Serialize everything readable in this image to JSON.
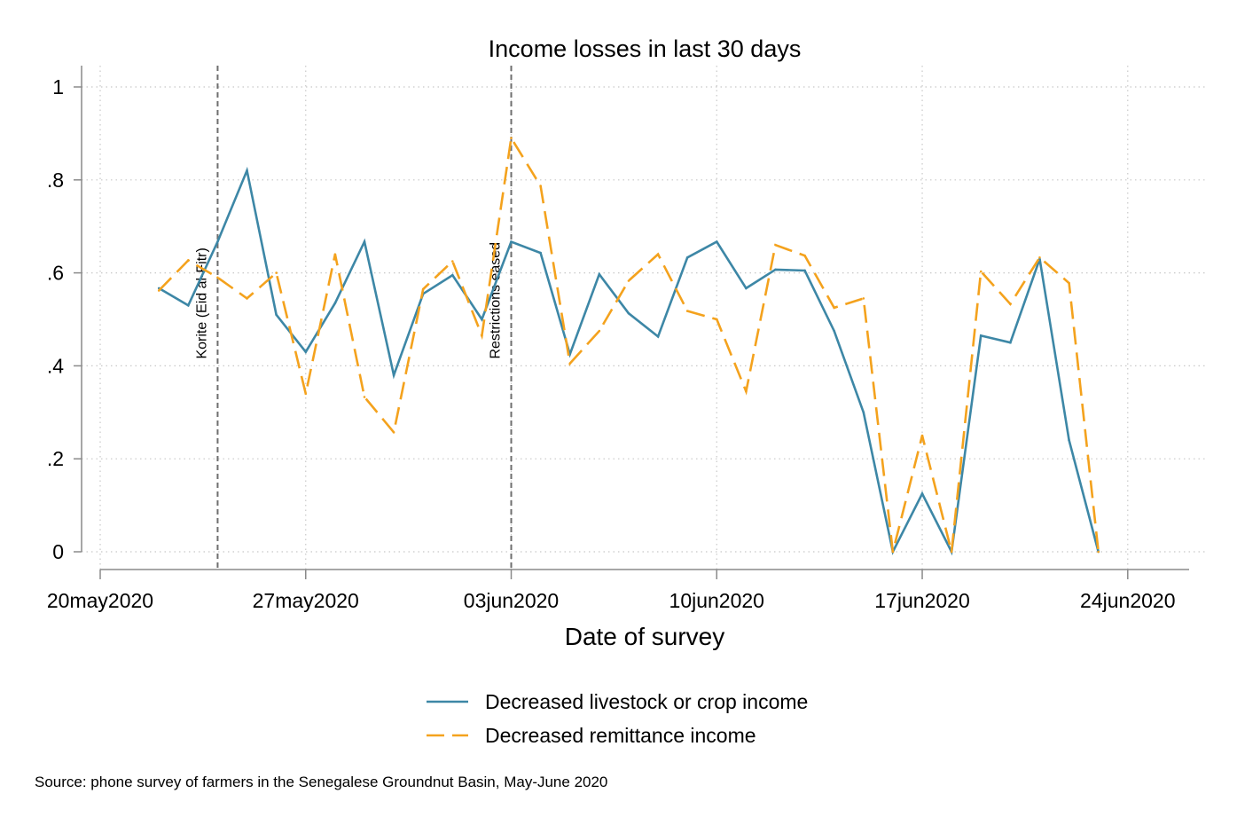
{
  "chart_data": {
    "type": "line",
    "title": "Income losses in last 30 days",
    "xlabel": "Date of survey",
    "ylabel": "",
    "x_dates": [
      "2020-05-22",
      "2020-05-23",
      "2020-05-24",
      "2020-05-25",
      "2020-05-26",
      "2020-05-27",
      "2020-05-28",
      "2020-05-29",
      "2020-05-30",
      "2020-05-31",
      "2020-06-01",
      "2020-06-02",
      "2020-06-03",
      "2020-06-04",
      "2020-06-05",
      "2020-06-06",
      "2020-06-07",
      "2020-06-08",
      "2020-06-09",
      "2020-06-10",
      "2020-06-11",
      "2020-06-12",
      "2020-06-13",
      "2020-06-14",
      "2020-06-15",
      "2020-06-16",
      "2020-06-17",
      "2020-06-18",
      "2020-06-19",
      "2020-06-20",
      "2020-06-21",
      "2020-06-22",
      "2020-06-23"
    ],
    "series": [
      {
        "name": "Decreased livestock or crop income",
        "color": "#3d87a6",
        "style": "solid",
        "values": [
          0.567,
          0.53,
          0.667,
          0.82,
          0.51,
          0.43,
          0.535,
          0.667,
          0.38,
          0.555,
          0.595,
          0.5,
          0.667,
          0.643,
          0.425,
          0.597,
          0.513,
          0.463,
          0.633,
          0.667,
          0.567,
          0.607,
          0.605,
          0.475,
          0.3,
          0.0,
          0.125,
          0.0,
          0.465,
          0.45,
          0.63,
          0.24,
          0.0
        ]
      },
      {
        "name": "Decreased remittance income",
        "color": "#f4a21d",
        "style": "dashed",
        "values": [
          0.562,
          0.627,
          0.59,
          0.545,
          0.6,
          0.34,
          0.64,
          0.333,
          0.257,
          0.565,
          0.625,
          0.465,
          0.89,
          0.787,
          0.405,
          0.475,
          0.583,
          0.64,
          0.518,
          0.5,
          0.345,
          0.66,
          0.637,
          0.525,
          0.545,
          0.0,
          0.25,
          0.0,
          0.603,
          0.533,
          0.633,
          0.578,
          0.0
        ]
      }
    ],
    "xticks": [
      {
        "date": "2020-05-20",
        "label": "20may2020"
      },
      {
        "date": "2020-05-27",
        "label": "27may2020"
      },
      {
        "date": "2020-06-03",
        "label": "03jun2020"
      },
      {
        "date": "2020-06-10",
        "label": "10jun2020"
      },
      {
        "date": "2020-06-17",
        "label": "17jun2020"
      },
      {
        "date": "2020-06-24",
        "label": "24jun2020"
      }
    ],
    "xlim": [
      "2020-05-20",
      "2020-06-26"
    ],
    "yticks": [
      {
        "value": 0,
        "label": "0"
      },
      {
        "value": 0.2,
        "label": ".2"
      },
      {
        "value": 0.4,
        "label": ".4"
      },
      {
        "value": 0.6,
        "label": ".6"
      },
      {
        "value": 0.8,
        "label": ".8"
      },
      {
        "value": 1,
        "label": "1"
      }
    ],
    "ylim": [
      0,
      1
    ],
    "grid": true,
    "legend_position": "bottom",
    "reference_lines": [
      {
        "date": "2020-05-24",
        "label": "Korite (Eid al-Fitr)",
        "label_value": 0.415
      },
      {
        "date": "2020-06-03",
        "label": "Restrictions eased",
        "label_value": 0.415
      }
    ]
  },
  "note": "Source: phone survey of farmers in the Senegalese Groundnut Basin, May-June 2020"
}
